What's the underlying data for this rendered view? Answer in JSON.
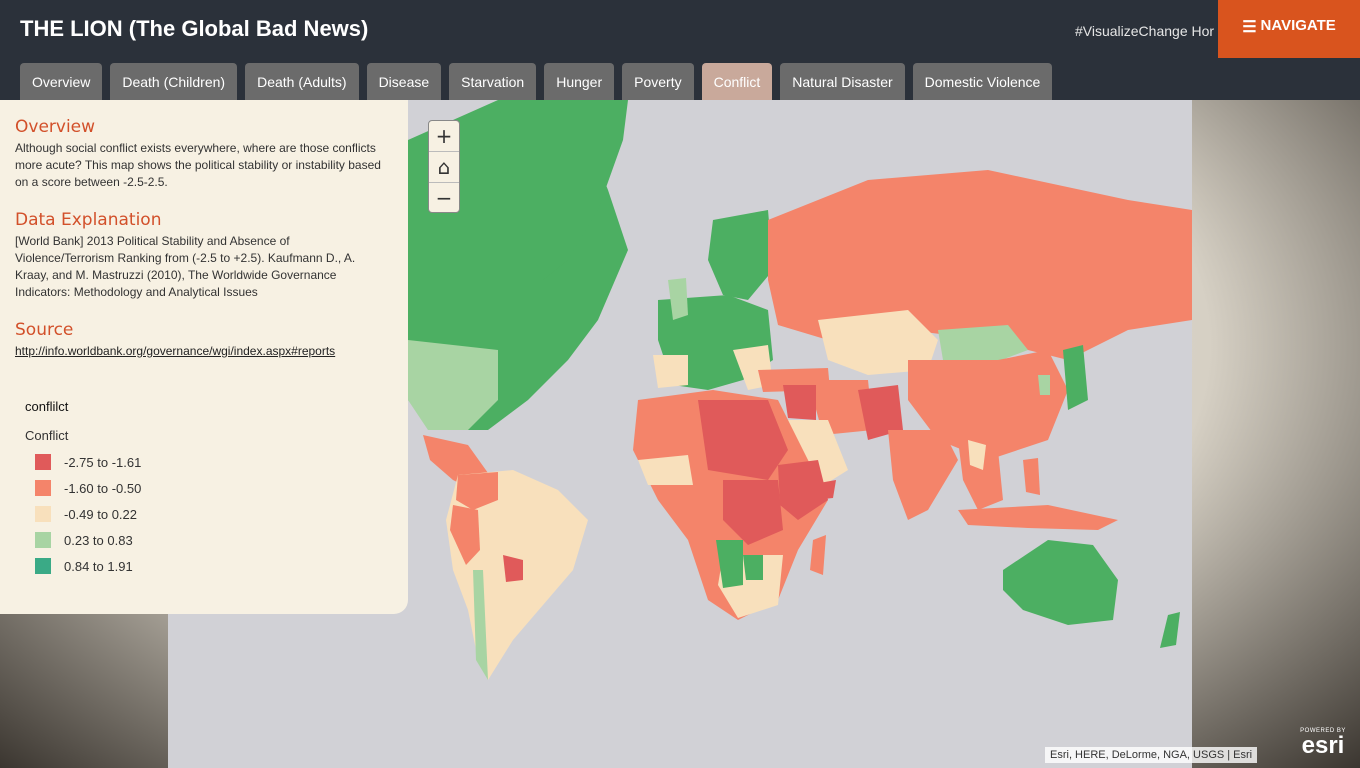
{
  "app": {
    "title": "THE LION (The Global Bad News)",
    "hashtag": "#VisualizeChange Hor",
    "navigate_label": "NAVIGATE"
  },
  "tabs": [
    {
      "label": "Overview",
      "active": false
    },
    {
      "label": "Death (Children)",
      "active": false
    },
    {
      "label": "Death (Adults)",
      "active": false
    },
    {
      "label": "Disease",
      "active": false
    },
    {
      "label": "Starvation",
      "active": false
    },
    {
      "label": "Hunger",
      "active": false
    },
    {
      "label": "Poverty",
      "active": false
    },
    {
      "label": "Conflict",
      "active": true
    },
    {
      "label": "Natural Disaster",
      "active": false
    },
    {
      "label": "Domestic Violence",
      "active": false
    }
  ],
  "panel": {
    "overview_title": "Overview",
    "overview_text": "Although social conflict exists everywhere, where are those conflicts more acute? This map shows the political stability or instability based on a score between -2.5-2.5.",
    "data_title": "Data Explanation",
    "data_text": "[World Bank] 2013 Political Stability and Absence of Violence/Terrorism Ranking from (-2.5 to +2.5). Kaufmann D., A. Kraay, and M. Mastruzzi (2010), The Worldwide Governance Indicators: Methodology and Analytical Issues",
    "source_title": "Source",
    "source_link": "http://info.worldbank.org/governance/wgi/index.aspx#reports"
  },
  "legend": {
    "layer_name": "conflilct",
    "field_name": "Conflict",
    "classes": [
      {
        "label": "-2.75 to -1.61",
        "color": "#e05a5a"
      },
      {
        "label": "-1.60 to -0.50",
        "color": "#f4846a"
      },
      {
        "label": "-0.49 to 0.22",
        "color": "#f8e0bc"
      },
      {
        "label": "0.23 to 0.83",
        "color": "#a8d4a3"
      },
      {
        "label": "0.84 to 1.91",
        "color": "#3aaa86"
      }
    ]
  },
  "map": {
    "zoom_in": "+",
    "home": "⌂",
    "zoom_out": "−",
    "ocean_color": "#d1d1d6"
  },
  "attribution": "Esri, HERE, DeLorme, NGA, USGS | Esri",
  "esri": {
    "powered": "POWERED BY",
    "word": "esri"
  }
}
